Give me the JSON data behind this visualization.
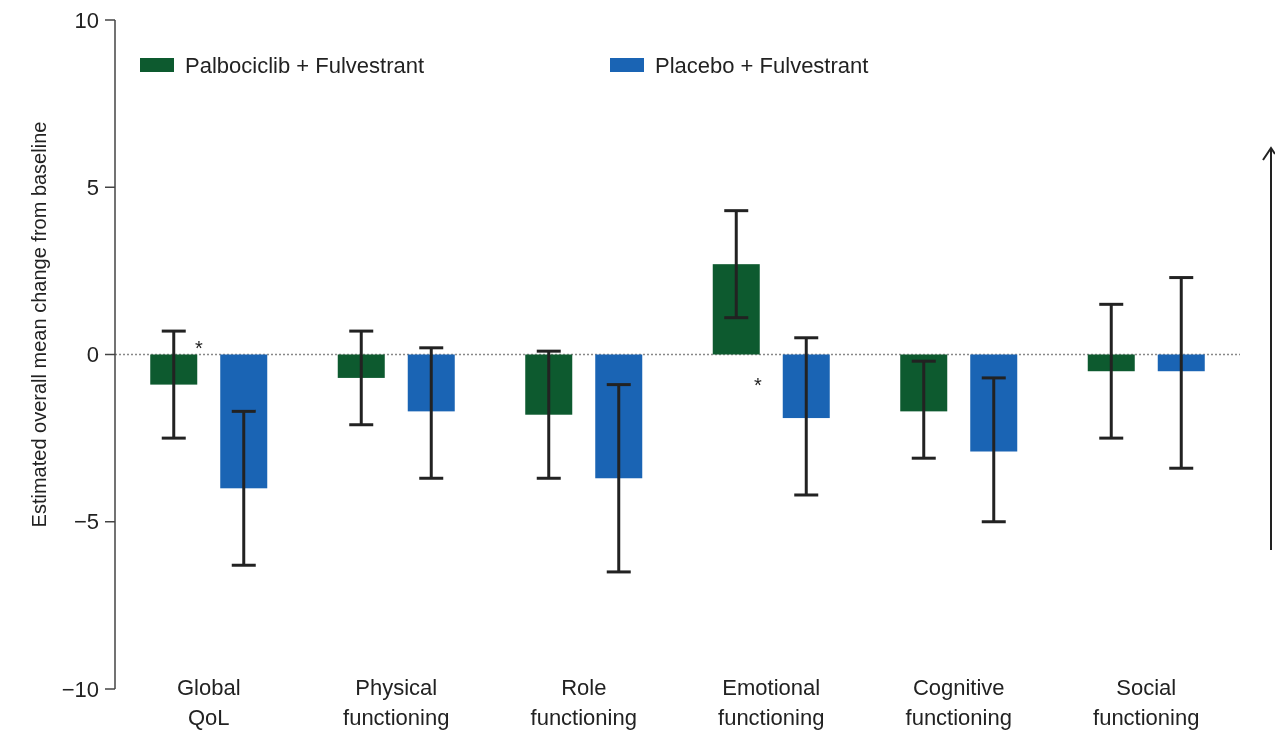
{
  "chart_data": {
    "type": "bar",
    "ylabel": "Estimated overall mean change from baseline",
    "categories": [
      "Global\nQoL",
      "Physical\nfunctioning",
      "Role\nfunctioning",
      "Emotional\nfunctioning",
      "Cognitive\nfunctioning",
      "Social\nfunctioning"
    ],
    "series": [
      {
        "name": "Palbociclib + Fulvestrant",
        "color": "#0d5a2f",
        "values": [
          -0.9,
          -0.7,
          -1.8,
          2.7,
          -1.7,
          -0.5
        ],
        "errors": [
          [
            -2.5,
            0.7
          ],
          [
            -2.1,
            0.7
          ],
          [
            -3.7,
            0.1
          ],
          [
            1.1,
            4.3
          ],
          [
            -3.1,
            -0.2
          ],
          [
            -2.5,
            1.5
          ]
        ]
      },
      {
        "name": "Placebo + Fulvestrant",
        "color": "#1a64b4",
        "values": [
          -4.0,
          -1.7,
          -3.7,
          -1.9,
          -2.9,
          -0.5
        ],
        "errors": [
          [
            -6.3,
            -1.7
          ],
          [
            -3.7,
            0.2
          ],
          [
            -6.5,
            -0.9
          ],
          [
            -4.2,
            0.5
          ],
          [
            -5.0,
            -0.7
          ],
          [
            -3.4,
            2.3
          ]
        ]
      }
    ],
    "ylim": [
      -10,
      10
    ],
    "yticks": [
      -10,
      -5,
      0,
      5,
      10
    ],
    "ref_lines": [
      {
        "axis": "y",
        "value": 0,
        "color": "#888888",
        "line_style": "dotted"
      }
    ],
    "annotations": [
      "*",
      "*"
    ],
    "legend": "top left",
    "grid": false
  }
}
